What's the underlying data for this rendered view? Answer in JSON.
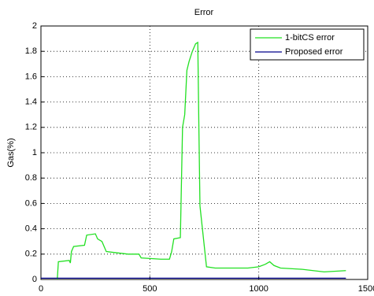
{
  "chart_data": {
    "type": "line",
    "title": "Error",
    "ylabel": "Gas(%)",
    "xlim": [
      0,
      1500
    ],
    "xticks": [
      0,
      500,
      1000,
      1500
    ],
    "ylim": [
      0,
      2
    ],
    "yticks": [
      0,
      0.2,
      0.4,
      0.6,
      0.8,
      1,
      1.2,
      1.4,
      1.6,
      1.8,
      2
    ],
    "grid": true,
    "legend": "upper-right",
    "series": [
      {
        "name": "1-bitCS error",
        "color": "#22e022",
        "x": [
          75,
          80,
          130,
          135,
          140,
          150,
          200,
          210,
          250,
          260,
          280,
          300,
          350,
          400,
          450,
          460,
          550,
          590,
          600,
          610,
          640,
          650,
          660,
          670,
          680,
          695,
          710,
          720,
          725,
          730,
          735,
          760,
          800,
          950,
          1000,
          1030,
          1050,
          1070,
          1100,
          1200,
          1250,
          1300,
          1400
        ],
        "values": [
          0,
          0.14,
          0.15,
          0.13,
          0.22,
          0.26,
          0.27,
          0.35,
          0.36,
          0.32,
          0.3,
          0.22,
          0.21,
          0.2,
          0.2,
          0.17,
          0.16,
          0.16,
          0.22,
          0.32,
          0.33,
          1.2,
          1.3,
          1.65,
          1.72,
          1.8,
          1.86,
          1.87,
          1.2,
          0.58,
          0.5,
          0.1,
          0.09,
          0.09,
          0.1,
          0.12,
          0.14,
          0.11,
          0.09,
          0.08,
          0.07,
          0.06,
          0.07
        ]
      },
      {
        "name": "Proposed error",
        "color": "#00008b",
        "x": [
          0,
          200,
          400,
          600,
          800,
          1000,
          1200,
          1400
        ],
        "values": [
          0.01,
          0.01,
          0.01,
          0.01,
          0.01,
          0.01,
          0.01,
          0.01
        ]
      }
    ]
  }
}
